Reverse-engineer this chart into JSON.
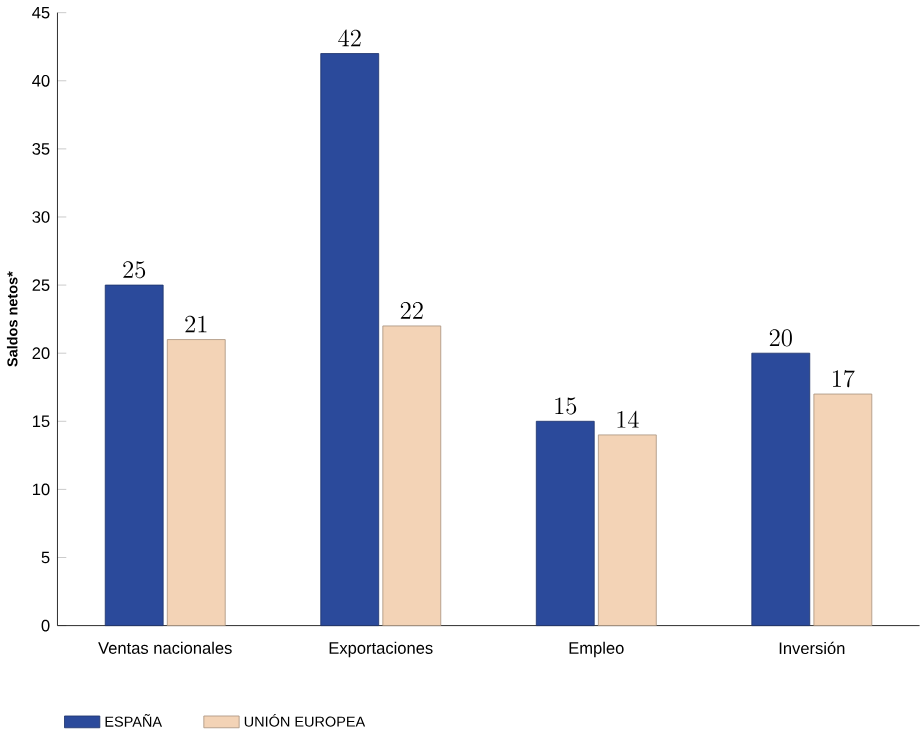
{
  "chart_data": {
    "type": "bar",
    "ylabel": "Saldos netos*",
    "categories": [
      "Ventas nacionales",
      "Exportaciones",
      "Empleo",
      "Inversión"
    ],
    "series": [
      {
        "name": "ESPAÑA",
        "color": "#2b4a9b",
        "values": [
          25,
          42,
          15,
          20
        ]
      },
      {
        "name": "UNIÓN EUROPEA",
        "color": "#f3d3b6",
        "values": [
          21,
          22,
          14,
          17
        ]
      }
    ],
    "ylim": [
      0,
      45
    ],
    "yticks": [
      0,
      5,
      10,
      15,
      20,
      25,
      30,
      35,
      40,
      45
    ],
    "data_labels": true,
    "legend": "bottom left",
    "grid": false
  }
}
